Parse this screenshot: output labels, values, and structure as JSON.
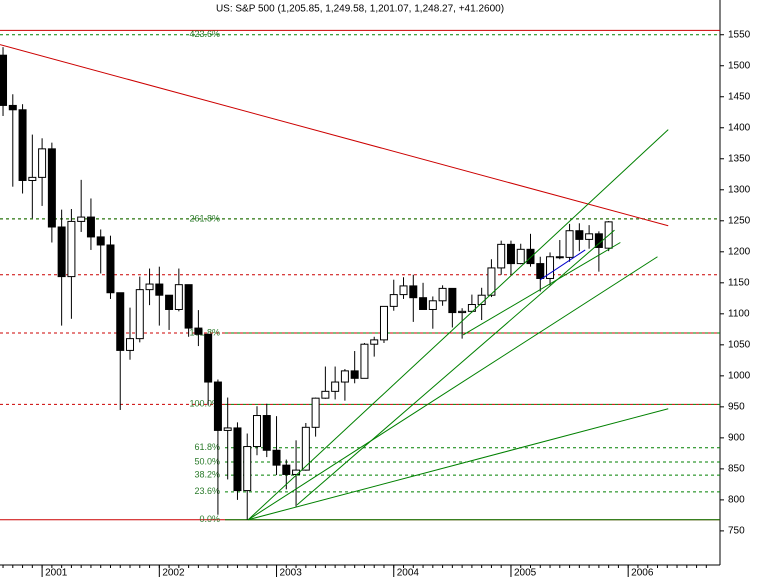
{
  "chart_data": {
    "type": "candlestick",
    "title": "US: S&P 500 (1,205.85, 1,249.58, 1,201.07, 1,248.27, +41.2600)",
    "open": [
      1517,
      1436,
      1429,
      1315,
      1320,
      1366,
      1240,
      1160,
      1249,
      1256,
      1224,
      1211,
      1134,
      1041,
      1060,
      1139,
      1148,
      1130,
      1107,
      1147,
      1077,
      1067,
      990,
      912,
      916,
      815,
      886,
      936,
      880,
      856,
      841,
      848,
      917,
      964,
      975,
      990,
      1008,
      996,
      1051,
      1058,
      1112,
      1131,
      1145,
      1126,
      1107,
      1121,
      1141,
      1102,
      1104,
      1115,
      1130,
      1174,
      1212,
      1181,
      1204,
      1181,
      1157,
      1192,
      1191,
      1234,
      1220,
      1229,
      1205.85
    ],
    "high": [
      1530,
      1454,
      1438,
      1389,
      1383,
      1376,
      1268,
      1269,
      1316,
      1286,
      1236,
      1226,
      1134,
      1110,
      1160,
      1173,
      1176,
      1130,
      1173,
      1147,
      1106,
      1068,
      994,
      965,
      925,
      907,
      951,
      955,
      935,
      865,
      896,
      924,
      965,
      1015,
      1015,
      1011,
      1040,
      1053,
      1063,
      1112,
      1155,
      1159,
      1163,
      1150,
      1128,
      1146,
      1141,
      1109,
      1131,
      1142,
      1188,
      1218,
      1218,
      1213,
      1229,
      1192,
      1199,
      1219,
      1245,
      1246,
      1243,
      1233,
      1249.58
    ],
    "low": [
      1419,
      1305,
      1294,
      1254,
      1274,
      1215,
      1081,
      1092,
      1232,
      1203,
      1165,
      1124,
      945,
      1026,
      1054,
      1114,
      1081,
      1074,
      1104,
      1063,
      1048,
      953,
      776,
      833,
      800,
      768,
      872,
      869,
      840,
      817,
      789,
      847,
      902,
      963,
      962,
      960,
      988,
      996,
      1031,
      1053,
      1105,
      1124,
      1087,
      1107,
      1076,
      1113,
      1078,
      1060,
      1102,
      1090,
      1127,
      1163,
      1163,
      1180,
      1176,
      1136,
      1146,
      1188,
      1184,
      1201,
      1205,
      1168,
      1201.07
    ],
    "close": [
      1436,
      1429,
      1315,
      1320,
      1366,
      1240,
      1160,
      1249,
      1256,
      1224,
      1211,
      1134,
      1041,
      1060,
      1139,
      1148,
      1130,
      1107,
      1147,
      1077,
      1067,
      990,
      912,
      916,
      815,
      886,
      936,
      880,
      856,
      841,
      848,
      917,
      964,
      975,
      990,
      1008,
      996,
      1051,
      1058,
      1112,
      1131,
      1145,
      1126,
      1107,
      1121,
      1141,
      1102,
      1104,
      1115,
      1130,
      1174,
      1212,
      1181,
      1204,
      1181,
      1157,
      1192,
      1191,
      1234,
      1220,
      1229,
      1207,
      1248.27
    ],
    "up_color": "#ffffff",
    "down_color": "#000000",
    "xlim": [
      -0.31,
      73.4
    ],
    "xticks": [
      {
        "value": 4,
        "label": "2001"
      },
      {
        "value": 16,
        "label": "2002"
      },
      {
        "value": 28,
        "label": "2003"
      },
      {
        "value": 40,
        "label": "2004"
      },
      {
        "value": 52,
        "label": "2005"
      },
      {
        "value": 64,
        "label": "2006"
      }
    ],
    "ylim": [
      695,
      1606
    ],
    "yticks": [
      750,
      800,
      850,
      900,
      950,
      1000,
      1050,
      1100,
      1150,
      1200,
      1250,
      1300,
      1350,
      1400,
      1450,
      1500,
      1550
    ],
    "fib_color": "#008000",
    "fib_levels": [
      {
        "value": 1550,
        "label": "423.6%"
      },
      {
        "value": 1253,
        "label": "261.8%"
      },
      {
        "value": 1069,
        "label": "161.8%"
      },
      {
        "value": 954,
        "label": "100.0%"
      },
      {
        "value": 884,
        "label": "61.8%"
      },
      {
        "value": 861,
        "label": "50.0%"
      },
      {
        "value": 840,
        "label": "38.2%"
      },
      {
        "value": 813,
        "label": "23.6%"
      },
      {
        "value": 768,
        "label": "0.0%"
      }
    ],
    "level_color": "#cc0000",
    "red_levels": [
      1557,
      1253,
      1163,
      1069,
      954,
      768
    ],
    "trend_lines": [
      {
        "color": "#cc0000",
        "x": [
          -0.31,
          68.1
        ],
        "y": [
          1534,
          1242
        ]
      },
      {
        "color": "#008000",
        "x": [
          25.1,
          68.1
        ],
        "y": [
          768,
          1397
        ]
      },
      {
        "color": "#008000",
        "x": [
          25.1,
          67.0
        ],
        "y": [
          768,
          1192
        ]
      },
      {
        "color": "#008000",
        "x": [
          25.1,
          68.1
        ],
        "y": [
          768,
          947
        ]
      },
      {
        "color": "#008000",
        "x": [
          30.1,
          62.6
        ],
        "y": [
          792,
          1235
        ]
      },
      {
        "color": "#008000",
        "x": [
          47.1,
          63.2
        ],
        "y": [
          1066,
          1215
        ]
      },
      {
        "color": "#0000cc",
        "x": [
          55.0,
          59.6
        ],
        "y": [
          1155,
          1203
        ]
      }
    ]
  }
}
